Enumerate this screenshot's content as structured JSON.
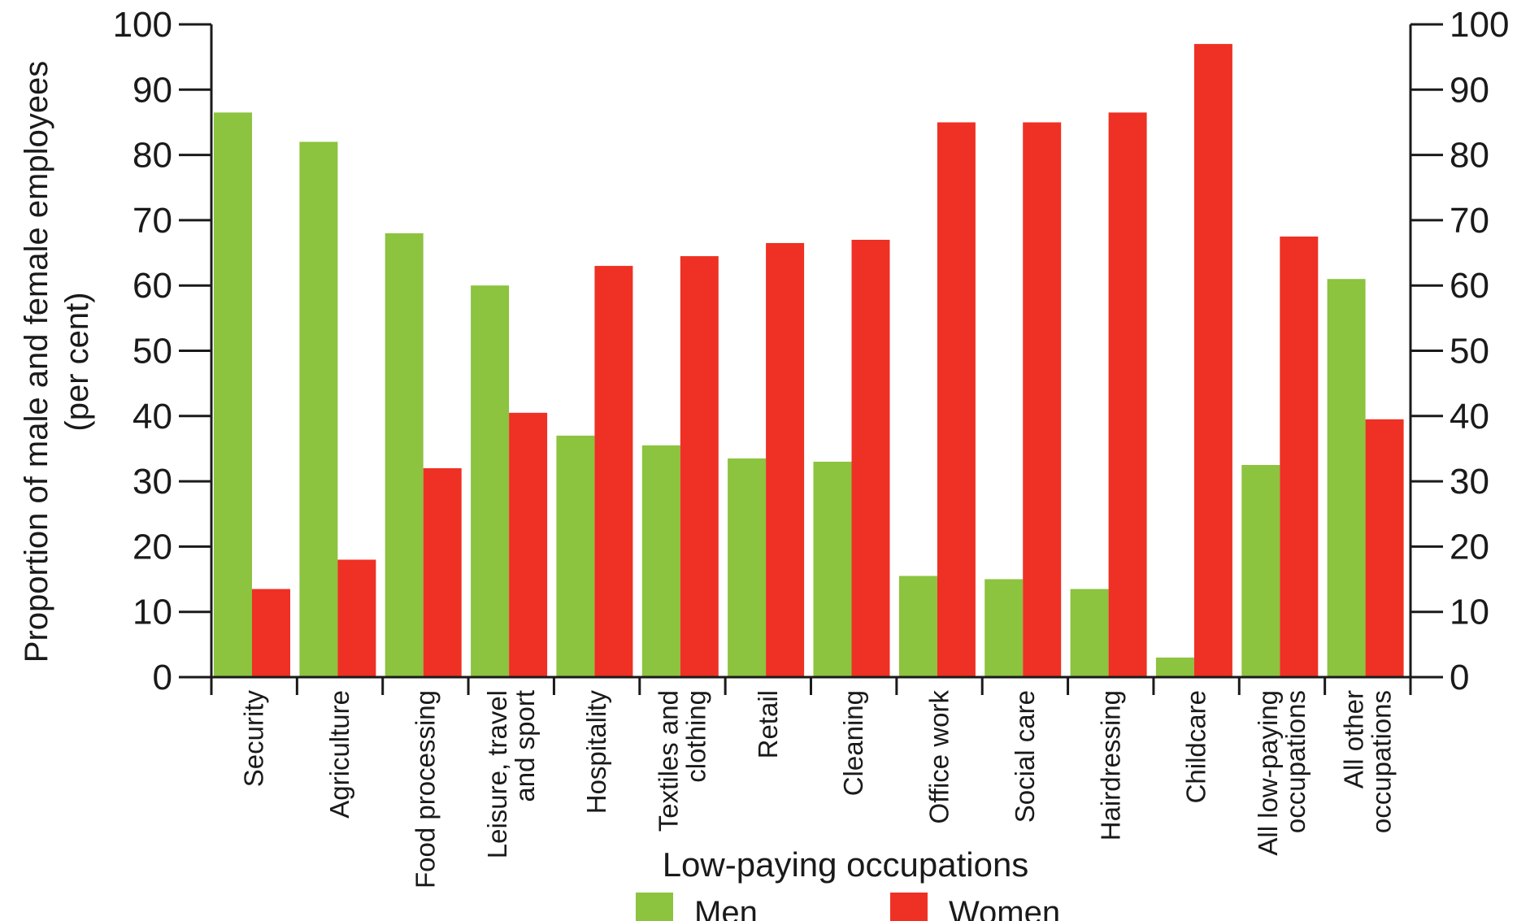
{
  "chart_data": {
    "type": "bar",
    "xlabel": "Low-paying occupations",
    "ylabel": [
      "Proportion of male and female employees",
      "(per cent)"
    ],
    "ylim": [
      0,
      100
    ],
    "yticks": [
      0,
      10,
      20,
      30,
      40,
      50,
      60,
      70,
      80,
      90,
      100
    ],
    "right_axis": true,
    "grid": false,
    "legend_position": "bottom-center",
    "categories": [
      [
        "Security"
      ],
      [
        "Agriculture"
      ],
      [
        "Food processing"
      ],
      [
        "Leisure, travel",
        "and sport"
      ],
      [
        "Hospitality"
      ],
      [
        "Textiles and",
        "clothing"
      ],
      [
        "Retail"
      ],
      [
        "Cleaning"
      ],
      [
        "Office work"
      ],
      [
        "Social care"
      ],
      [
        "Hairdressing"
      ],
      [
        "Childcare"
      ],
      [
        "All low-paying",
        "occupations"
      ],
      [
        "All other",
        "occupations"
      ]
    ],
    "series": [
      {
        "name": "Men",
        "color": "#8cc33f",
        "values": [
          86.5,
          82,
          68,
          60,
          37,
          35.5,
          33.5,
          33,
          15.5,
          15,
          13.5,
          3,
          32.5,
          61
        ]
      },
      {
        "name": "Women",
        "color": "#ee3124",
        "values": [
          13.5,
          18,
          32,
          40.5,
          63,
          64.5,
          66.5,
          67,
          85,
          85,
          86.5,
          97,
          67.5,
          39.5
        ]
      }
    ]
  }
}
